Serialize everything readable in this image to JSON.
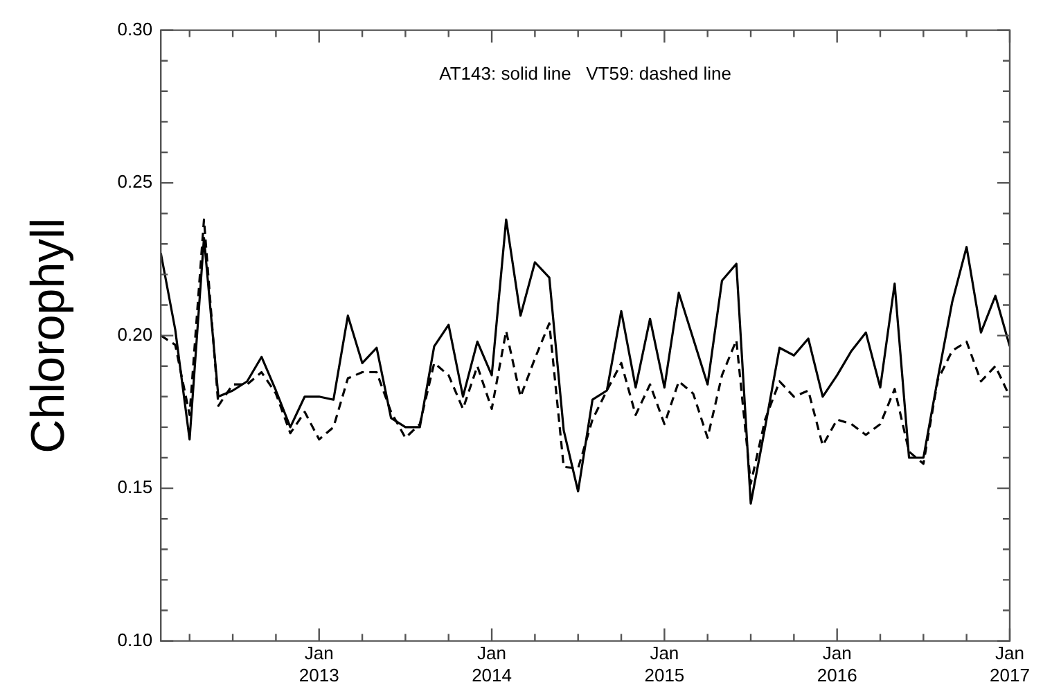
{
  "chart_data": {
    "type": "line",
    "ylabel": "Chlorophyll",
    "annotations": [
      "AT143: solid line   VT59: dashed line"
    ],
    "x": [
      "2012-02",
      "2012-03",
      "2012-04",
      "2012-05",
      "2012-06",
      "2012-07",
      "2012-08",
      "2012-09",
      "2012-10",
      "2012-11",
      "2012-12",
      "2013-01",
      "2013-02",
      "2013-03",
      "2013-04",
      "2013-05",
      "2013-06",
      "2013-07",
      "2013-08",
      "2013-09",
      "2013-10",
      "2013-11",
      "2013-12",
      "2014-01",
      "2014-02",
      "2014-03",
      "2014-04",
      "2014-05",
      "2014-06",
      "2014-07",
      "2014-08",
      "2014-09",
      "2014-10",
      "2014-11",
      "2014-12",
      "2015-01",
      "2015-02",
      "2015-03",
      "2015-04",
      "2015-05",
      "2015-06",
      "2015-07",
      "2015-08",
      "2015-09",
      "2015-10",
      "2015-11",
      "2015-12",
      "2016-01",
      "2016-02",
      "2016-03",
      "2016-04",
      "2016-05",
      "2016-06",
      "2016-07",
      "2016-08",
      "2016-09",
      "2016-10",
      "2016-11",
      "2016-12",
      "2017-01"
    ],
    "series": [
      {
        "color": "#000000",
        "line_style": "solid",
        "values": [
          0.227,
          0.202,
          0.166,
          0.232,
          0.18,
          0.182,
          0.185,
          0.193,
          0.182,
          0.17,
          0.18,
          0.18,
          0.179,
          0.2065,
          0.191,
          0.196,
          0.173,
          0.17,
          0.17,
          0.1965,
          0.2035,
          0.18,
          0.198,
          0.187,
          0.238,
          0.2065,
          0.224,
          0.219,
          0.169,
          0.149,
          0.179,
          0.182,
          0.208,
          0.183,
          0.2055,
          0.183,
          0.214,
          0.199,
          0.184,
          0.218,
          0.2235,
          0.145,
          0.17,
          0.196,
          0.1935,
          0.199,
          0.18,
          0.187,
          0.195,
          0.201,
          0.183,
          0.217,
          0.16,
          0.16,
          0.186,
          0.211,
          0.229,
          0.201,
          0.213,
          0.1965
        ]
      },
      {
        "color": "#000000",
        "line_style": "dashed",
        "values": [
          0.2,
          0.197,
          0.174,
          0.238,
          0.177,
          0.184,
          0.184,
          0.188,
          0.181,
          0.168,
          0.175,
          0.166,
          0.17,
          0.186,
          0.188,
          0.188,
          0.175,
          0.1665,
          0.171,
          0.191,
          0.187,
          0.176,
          0.19,
          0.176,
          0.2015,
          0.18,
          0.1925,
          0.204,
          0.157,
          0.1565,
          0.1725,
          0.182,
          0.191,
          0.174,
          0.184,
          0.171,
          0.185,
          0.181,
          0.1665,
          0.187,
          0.1985,
          0.1515,
          0.1725,
          0.185,
          0.18,
          0.182,
          0.164,
          0.1725,
          0.171,
          0.1675,
          0.171,
          0.1825,
          0.162,
          0.158,
          0.1855,
          0.195,
          0.198,
          0.185,
          0.19,
          0.18
        ]
      }
    ],
    "xlim": [
      "2012-02",
      "2017-01"
    ],
    "xticks": [
      {
        "value": "2012-04",
        "label": null
      },
      {
        "value": "2012-07",
        "label": null
      },
      {
        "value": "2012-10",
        "label": null
      },
      {
        "value": "2013-01",
        "label": "Jan 2013"
      },
      {
        "value": "2013-04",
        "label": null
      },
      {
        "value": "2013-07",
        "label": null
      },
      {
        "value": "2013-10",
        "label": null
      },
      {
        "value": "2014-01",
        "label": "Jan 2014"
      },
      {
        "value": "2014-04",
        "label": null
      },
      {
        "value": "2014-07",
        "label": null
      },
      {
        "value": "2014-10",
        "label": null
      },
      {
        "value": "2015-01",
        "label": "Jan 2015"
      },
      {
        "value": "2015-04",
        "label": null
      },
      {
        "value": "2015-07",
        "label": null
      },
      {
        "value": "2015-10",
        "label": null
      },
      {
        "value": "2016-01",
        "label": "Jan 2016"
      },
      {
        "value": "2016-04",
        "label": null
      },
      {
        "value": "2016-07",
        "label": null
      },
      {
        "value": "2016-10",
        "label": null
      },
      {
        "value": "2017-01",
        "label": "Jan 2017"
      }
    ],
    "ylim": [
      0.1,
      0.3
    ],
    "yticks": [
      {
        "value": 0.1,
        "label": "0.10"
      },
      {
        "value": 0.11,
        "label": null
      },
      {
        "value": 0.12,
        "label": null
      },
      {
        "value": 0.13,
        "label": null
      },
      {
        "value": 0.14,
        "label": null
      },
      {
        "value": 0.15,
        "label": "0.15"
      },
      {
        "value": 0.16,
        "label": null
      },
      {
        "value": 0.17,
        "label": null
      },
      {
        "value": 0.18,
        "label": null
      },
      {
        "value": 0.19,
        "label": null
      },
      {
        "value": 0.2,
        "label": "0.20"
      },
      {
        "value": 0.21,
        "label": null
      },
      {
        "value": 0.22,
        "label": null
      },
      {
        "value": 0.23,
        "label": null
      },
      {
        "value": 0.24,
        "label": null
      },
      {
        "value": 0.25,
        "label": "0.25"
      },
      {
        "value": 0.26,
        "label": null
      },
      {
        "value": 0.27,
        "label": null
      },
      {
        "value": 0.28,
        "label": null
      },
      {
        "value": 0.29,
        "label": null
      },
      {
        "value": 0.3,
        "label": "0.30"
      }
    ],
    "grid": false,
    "legend": false,
    "marker": "none"
  }
}
